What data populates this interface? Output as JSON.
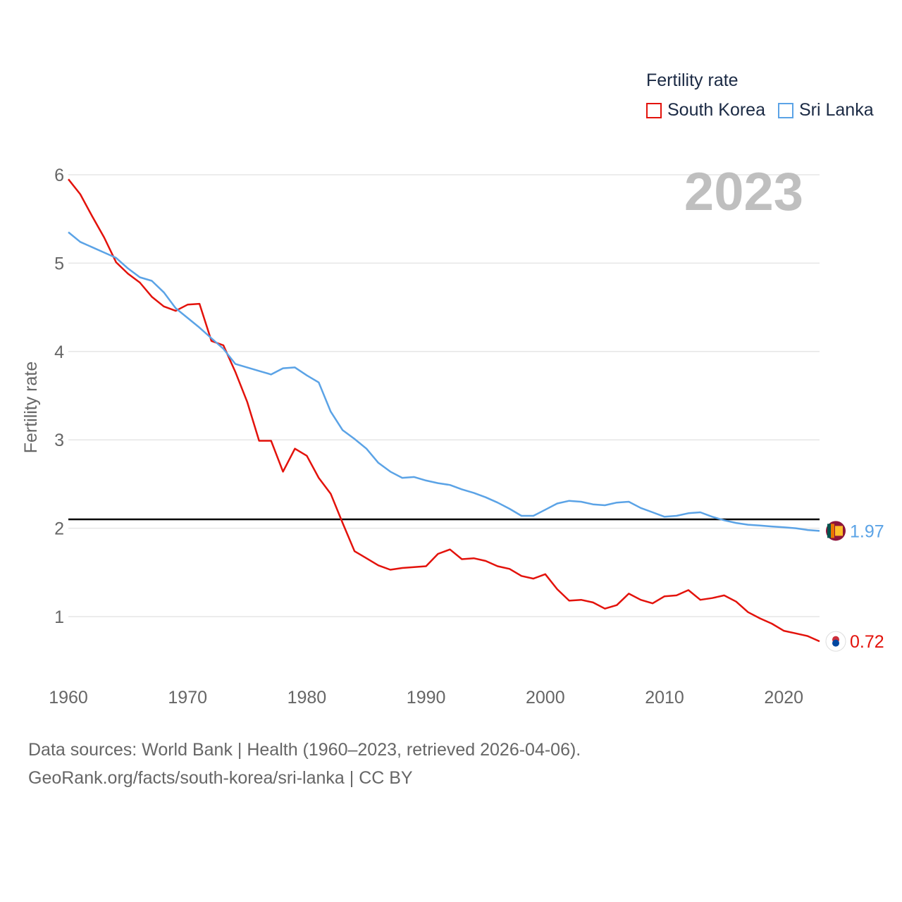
{
  "chart_data": {
    "type": "line",
    "title": "Fertility rate",
    "ylabel": "Fertility rate",
    "xlabel": "",
    "year_label": "2023",
    "xlim": [
      1960,
      2023
    ],
    "ylim": [
      0.3,
      6.2
    ],
    "x_ticks": [
      1960,
      1970,
      1980,
      1990,
      2000,
      2010,
      2020
    ],
    "y_ticks": [
      1,
      2,
      3,
      4,
      5,
      6
    ],
    "reference_line": 2.1,
    "x": [
      1960,
      1961,
      1962,
      1963,
      1964,
      1965,
      1966,
      1967,
      1968,
      1969,
      1970,
      1971,
      1972,
      1973,
      1974,
      1975,
      1976,
      1977,
      1978,
      1979,
      1980,
      1981,
      1982,
      1983,
      1984,
      1985,
      1986,
      1987,
      1988,
      1989,
      1990,
      1991,
      1992,
      1993,
      1994,
      1995,
      1996,
      1997,
      1998,
      1999,
      2000,
      2001,
      2002,
      2003,
      2004,
      2005,
      2006,
      2007,
      2008,
      2009,
      2010,
      2011,
      2012,
      2013,
      2014,
      2015,
      2016,
      2017,
      2018,
      2019,
      2020,
      2021,
      2022,
      2023
    ],
    "series": [
      {
        "name": "South Korea",
        "color": "#e3120b",
        "end_label": "0.72",
        "values": [
          5.95,
          5.78,
          5.53,
          5.29,
          5.01,
          4.88,
          4.78,
          4.62,
          4.51,
          4.46,
          4.53,
          4.54,
          4.12,
          4.07,
          3.77,
          3.43,
          2.99,
          2.99,
          2.64,
          2.9,
          2.82,
          2.57,
          2.39,
          2.06,
          1.74,
          1.66,
          1.58,
          1.53,
          1.55,
          1.56,
          1.57,
          1.71,
          1.76,
          1.65,
          1.66,
          1.63,
          1.57,
          1.54,
          1.46,
          1.43,
          1.48,
          1.31,
          1.18,
          1.19,
          1.16,
          1.09,
          1.13,
          1.26,
          1.19,
          1.15,
          1.23,
          1.24,
          1.3,
          1.19,
          1.21,
          1.24,
          1.17,
          1.05,
          0.98,
          0.92,
          0.84,
          0.81,
          0.78,
          0.72
        ]
      },
      {
        "name": "Sri Lanka",
        "color": "#5ba3e6",
        "end_label": "1.97",
        "values": [
          5.35,
          5.24,
          5.18,
          5.12,
          5.06,
          4.94,
          4.84,
          4.8,
          4.67,
          4.49,
          4.38,
          4.27,
          4.15,
          4.03,
          3.86,
          3.82,
          3.78,
          3.74,
          3.81,
          3.82,
          3.73,
          3.65,
          3.32,
          3.11,
          3.01,
          2.9,
          2.74,
          2.64,
          2.57,
          2.58,
          2.54,
          2.51,
          2.49,
          2.44,
          2.4,
          2.35,
          2.29,
          2.22,
          2.14,
          2.14,
          2.21,
          2.28,
          2.31,
          2.3,
          2.27,
          2.26,
          2.29,
          2.3,
          2.23,
          2.18,
          2.13,
          2.14,
          2.17,
          2.18,
          2.13,
          2.09,
          2.06,
          2.04,
          2.03,
          2.02,
          2.01,
          2.0,
          1.98,
          1.97
        ]
      }
    ]
  },
  "legend": {
    "title": "Fertility rate",
    "items": [
      "South Korea",
      "Sri Lanka"
    ]
  },
  "sources": {
    "line1": "Data sources: World Bank | Health (1960–2023, retrieved 2026-04-06).",
    "line2": "GeoRank.org/facts/south-korea/sri-lanka | CC BY"
  }
}
